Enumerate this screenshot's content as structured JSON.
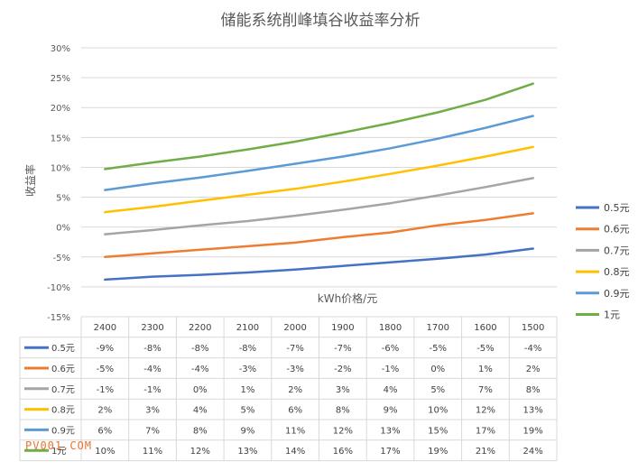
{
  "chart_data": {
    "type": "line",
    "title": "储能系统削峰填谷收益率分析",
    "xlabel": "kWh价格/元",
    "ylabel": "收益率",
    "categories": [
      "2400",
      "2300",
      "2200",
      "2100",
      "2000",
      "1900",
      "1800",
      "1700",
      "1600",
      "1500"
    ],
    "ylim": [
      -15,
      30
    ],
    "yticks": [
      "30%",
      "25%",
      "20%",
      "15%",
      "10%",
      "5%",
      "0%",
      "-5%",
      "-10%",
      "-15%"
    ],
    "ytick_values": [
      30,
      25,
      20,
      15,
      10,
      5,
      0,
      -5,
      -10,
      -15
    ],
    "grid": true,
    "legend_position": "right",
    "series": [
      {
        "name": "0.5元",
        "color": "#4472c4",
        "values": [
          -8.8,
          -8.3,
          -8.0,
          -7.6,
          -7.1,
          -6.5,
          -5.9,
          -5.3,
          -4.6,
          -3.6
        ],
        "labels": [
          "-9%",
          "-8%",
          "-8%",
          "-8%",
          "-7%",
          "-7%",
          "-6%",
          "-5%",
          "-5%",
          "-4%"
        ]
      },
      {
        "name": "0.6元",
        "color": "#ed7d31",
        "values": [
          -5.0,
          -4.4,
          -3.8,
          -3.2,
          -2.6,
          -1.7,
          -0.9,
          0.3,
          1.2,
          2.3
        ],
        "labels": [
          "-5%",
          "-4%",
          "-4%",
          "-3%",
          "-3%",
          "-2%",
          "-1%",
          "0%",
          "1%",
          "2%"
        ]
      },
      {
        "name": "0.7元",
        "color": "#a5a5a5",
        "values": [
          -1.2,
          -0.5,
          0.3,
          1.0,
          1.9,
          2.9,
          4.0,
          5.3,
          6.7,
          8.2
        ],
        "labels": [
          "-1%",
          "-1%",
          "0%",
          "1%",
          "2%",
          "3%",
          "4%",
          "5%",
          "7%",
          "8%"
        ]
      },
      {
        "name": "0.8元",
        "color": "#ffc000",
        "values": [
          2.5,
          3.4,
          4.4,
          5.4,
          6.4,
          7.6,
          8.9,
          10.3,
          11.8,
          13.4
        ],
        "labels": [
          "2%",
          "3%",
          "4%",
          "5%",
          "6%",
          "8%",
          "9%",
          "10%",
          "12%",
          "13%"
        ]
      },
      {
        "name": "0.9元",
        "color": "#5b9bd5",
        "values": [
          6.2,
          7.3,
          8.3,
          9.4,
          10.6,
          11.8,
          13.2,
          14.8,
          16.6,
          18.6
        ],
        "labels": [
          "6%",
          "7%",
          "8%",
          "9%",
          "11%",
          "12%",
          "13%",
          "15%",
          "17%",
          "19%"
        ]
      },
      {
        "name": "1元",
        "color": "#70ad47",
        "values": [
          9.7,
          10.8,
          11.8,
          13.0,
          14.3,
          15.8,
          17.4,
          19.2,
          21.3,
          24.0
        ],
        "labels": [
          "10%",
          "11%",
          "12%",
          "13%",
          "14%",
          "16%",
          "17%",
          "19%",
          "21%",
          "24%"
        ]
      }
    ]
  },
  "watermark": "PV001.COM"
}
